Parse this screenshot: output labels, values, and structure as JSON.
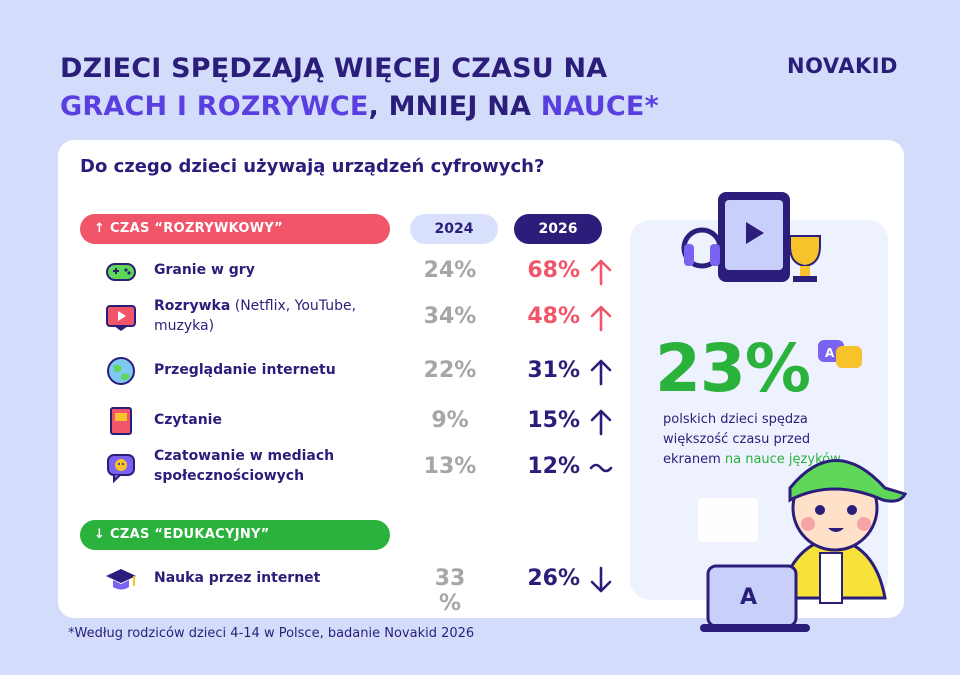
{
  "title": {
    "line1": "DZIECI SPĘDZAJĄ WIĘCEJ CZASU NA",
    "line2_accent1": "GRACH I ROZRYWCE",
    "line2_mid": ", MNIEJ NA ",
    "line2_accent2": "NAUCE",
    "line2_end": "*"
  },
  "brand": {
    "logo": "NOVAKID",
    "dots": "''"
  },
  "subtitle": "Do czego dzieci używają urządzeń cyfrowych?",
  "categories": {
    "entertainment": "↑ CZAS “ROZRYWKOWY”",
    "education": "↓ CZAS “EDUKACYJNY”"
  },
  "years": [
    "2024",
    "2026"
  ],
  "colors": {
    "red": "#f0556a",
    "green": "#2bb23c",
    "navy": "#2b1e7a",
    "gray": "#a6a6a6"
  },
  "chart_data": {
    "type": "table",
    "columns": [
      "",
      "2024",
      "2026"
    ],
    "rows": [
      {
        "group": "entertainment",
        "label": "Granie w gry",
        "label_extra": "",
        "icon": "gamepad-icon",
        "v2024": "24%",
        "v2026": "68%",
        "trend": "up",
        "highlight": true
      },
      {
        "group": "entertainment",
        "label": "Rozrywka",
        "label_extra": " (Netflix, YouTube, muzyka)",
        "icon": "play-icon",
        "v2024": "34%",
        "v2026": "48%",
        "trend": "up",
        "highlight": true
      },
      {
        "group": "entertainment",
        "label": "Przeglądanie internetu",
        "label_extra": "",
        "icon": "globe-icon",
        "v2024": "22%",
        "v2026": "31%",
        "trend": "up",
        "highlight": false
      },
      {
        "group": "entertainment",
        "label": "Czytanie",
        "label_extra": "",
        "icon": "book-icon",
        "v2024": "9%",
        "v2026": "15%",
        "trend": "up",
        "highlight": false
      },
      {
        "group": "entertainment",
        "label": "Czatowanie w mediach społecznościowych",
        "label_extra": "",
        "icon": "chat-icon",
        "v2024": "13%",
        "v2026": "12%",
        "trend": "flat",
        "highlight": false
      },
      {
        "group": "education",
        "label": "Nauka przez internet",
        "label_extra": "",
        "icon": "graduation-cap-icon",
        "v2024": "33 %",
        "v2026": "26%",
        "trend": "down",
        "highlight": false
      }
    ]
  },
  "stat": {
    "value": "23%",
    "text_main": "polskich dzieci spędza większość czasu przed ekranem ",
    "text_green": "na nauce języków"
  },
  "footnote": "*Według rodziców dzieci 4-14 w Polsce, badanie Novakid 2026"
}
